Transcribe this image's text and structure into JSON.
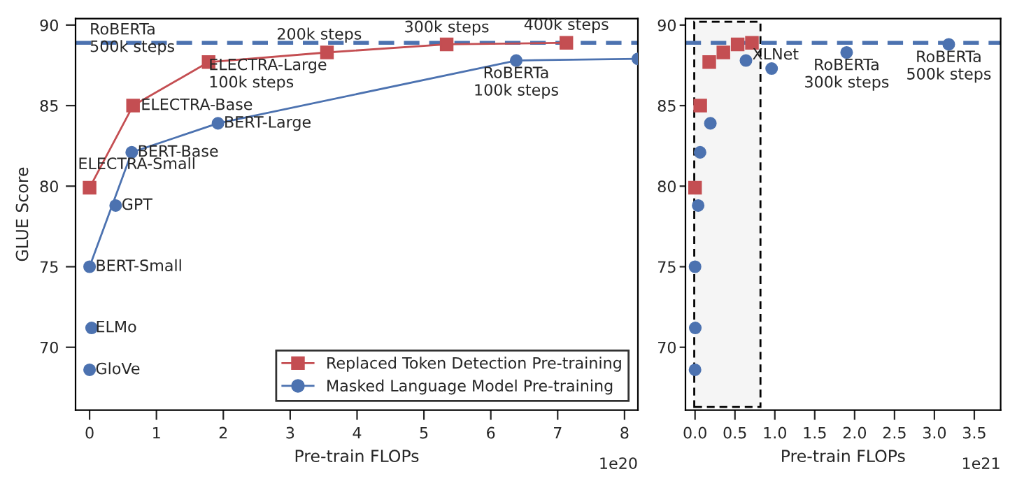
{
  "chart_data": [
    {
      "type": "line",
      "xlabel": "Pre-train FLOPs",
      "ylabel": "GLUE Score",
      "xlim": [
        -0.21,
        8.2
      ],
      "ylim": [
        66.1,
        90.4
      ],
      "xticks": [
        0,
        1,
        2,
        3,
        4,
        5,
        6,
        7,
        8
      ],
      "yticks": [
        70,
        75,
        80,
        85,
        90
      ],
      "grid": false,
      "legend": "bottom right",
      "series": [
        {
          "name": "Replaced Token Detection Pre-training",
          "marker": "square",
          "color": "#c44e52",
          "x": [
            0,
            0.65,
            1.78,
            3.55,
            5.34,
            7.13
          ],
          "values": [
            79.9,
            85.0,
            87.7,
            88.3,
            88.8,
            88.9
          ]
        },
        {
          "name": "Masked Language Model Pre-training",
          "marker": "circle",
          "color": "#4c72b0",
          "x": [
            0,
            0.63,
            1.92,
            6.38,
            8.2
          ],
          "values": [
            75.0,
            82.1,
            83.9,
            87.8,
            87.9
          ]
        },
        {
          "type": "scatter",
          "marker": "circle",
          "color": "#4c72b0",
          "x": [
            0.39,
            0.03,
            0
          ],
          "values": [
            78.8,
            71.2,
            68.6
          ]
        }
      ],
      "ref_lines": [
        {
          "axis": "y",
          "value": 88.9,
          "color": "#4c72b0",
          "line_style": "dashed"
        }
      ],
      "annotations": [
        {
          "text": "RoBERTa\n500k steps",
          "x": 0,
          "y": 88.9
        },
        {
          "text": "200k steps",
          "x": 3.55,
          "y": 88.3
        },
        {
          "text": "300k steps",
          "x": 5.34,
          "y": 88.75
        },
        {
          "text": "400k steps",
          "x": 7.13,
          "y": 88.9
        },
        {
          "text": "ELECTRA-Large\n100k steps",
          "x": 1.78,
          "y": 87.7
        },
        {
          "text": "ELECTRA-Base",
          "x": 0.65,
          "y": 85.0
        },
        {
          "text": "ELECTRA-Small",
          "x": 0,
          "y": 79.9
        },
        {
          "text": "BERT-Base",
          "x": 0.63,
          "y": 82.1
        },
        {
          "text": "BERT-Large",
          "x": 1.92,
          "y": 83.9
        },
        {
          "text": "GPT",
          "x": 0.39,
          "y": 78.8
        },
        {
          "text": "BERT-Small",
          "x": 0,
          "y": 75.0
        },
        {
          "text": "ELMo",
          "x": 0.03,
          "y": 71.2
        },
        {
          "text": "GloVe",
          "x": 0,
          "y": 68.6
        },
        {
          "text": "RoBERTa\n100k steps",
          "x": 6.38,
          "y": 87.8
        },
        "1e20"
      ]
    },
    {
      "type": "scatter",
      "xlabel": "Pre-train FLOPs",
      "xlim": [
        -0.12,
        3.83
      ],
      "ylim": [
        66.1,
        90.4
      ],
      "xticks": [
        {
          "value": 0,
          "label": "0.0"
        },
        {
          "value": 0.5,
          "label": "0.5"
        },
        {
          "value": 1,
          "label": "1.0"
        },
        {
          "value": 1.5,
          "label": "1.5"
        },
        {
          "value": 2,
          "label": "2.0"
        },
        {
          "value": 2.5,
          "label": "2.5"
        },
        {
          "value": 3,
          "label": "3.0"
        },
        {
          "value": 3.5,
          "label": "3.5"
        }
      ],
      "yticks": [
        70,
        75,
        80,
        85,
        90
      ],
      "grid": false,
      "legend": false,
      "series": [
        {
          "marker": "square",
          "color": "#c44e52",
          "x": [
            0,
            0.065,
            0.178,
            0.355,
            0.534,
            0.713
          ],
          "values": [
            79.9,
            85.0,
            87.7,
            88.3,
            88.8,
            88.9
          ]
        },
        {
          "marker": "circle",
          "color": "#4c72b0",
          "x": [
            0,
            0.039,
            0.063,
            0.192,
            0.638,
            0.96,
            1.9,
            3.18,
            0.003,
            0
          ],
          "values": [
            75.0,
            78.8,
            82.1,
            83.9,
            87.8,
            87.3,
            88.3,
            88.8,
            71.2,
            68.6
          ]
        }
      ],
      "ref_lines": [
        {
          "axis": "y",
          "value": 88.9,
          "color": "#4c72b0",
          "line_style": "dashed"
        }
      ],
      "bands": [
        {
          "axis": "x",
          "from": -0.01,
          "to": 0.82,
          "color": "#f5f5f5"
        }
      ],
      "annotations": [
        {
          "text": "XLNet",
          "x": 0.96,
          "y": 87.3
        },
        {
          "text": "RoBERTa\n300k steps",
          "x": 1.9,
          "y": 88.3
        },
        {
          "text": "RoBERTa\n500k steps",
          "x": 3.18,
          "y": 88.8
        },
        "1e21"
      ]
    }
  ]
}
